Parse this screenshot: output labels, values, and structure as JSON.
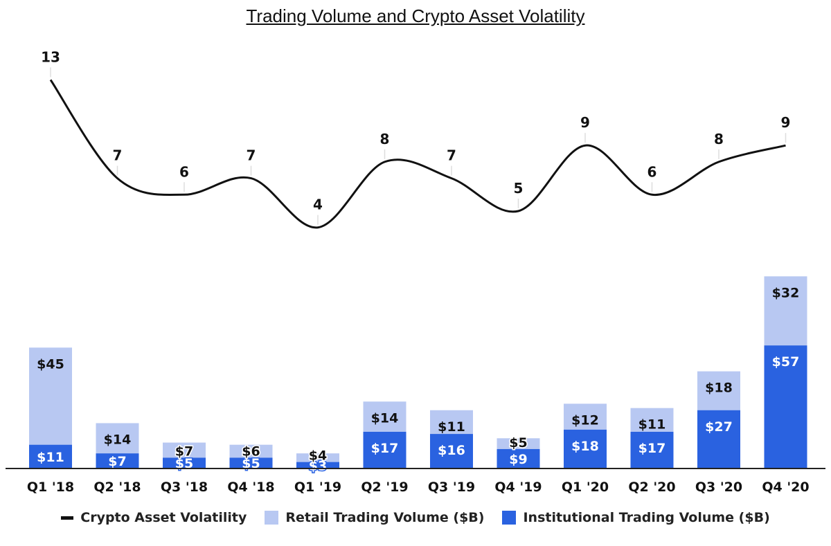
{
  "chart_data": {
    "type": "bar",
    "title": "Trading Volume and Crypto Asset Volatility",
    "categories": [
      "Q1 '18",
      "Q2 '18",
      "Q3 '18",
      "Q4 '18",
      "Q1 '19",
      "Q2 '19",
      "Q3 '19",
      "Q4 '19",
      "Q1 '20",
      "Q2 '20",
      "Q3 '20",
      "Q4 '20"
    ],
    "stacked": true,
    "series": [
      {
        "name": "Institutional Trading Volume ($B)",
        "kind": "bar",
        "color": "#2a62e0",
        "values": [
          11,
          7,
          5,
          5,
          3,
          17,
          16,
          9,
          18,
          17,
          27,
          57
        ],
        "labels": [
          "$11",
          "$7",
          "$5",
          "$5",
          "$3",
          "$17",
          "$16",
          "$9",
          "$18",
          "$17",
          "$27",
          "$57"
        ]
      },
      {
        "name": "Retail Trading Volume ($B)",
        "kind": "bar",
        "color": "#b8c8f2",
        "values": [
          45,
          14,
          7,
          6,
          4,
          14,
          11,
          5,
          12,
          11,
          18,
          32
        ],
        "labels": [
          "$45",
          "$14",
          "$7",
          "$6",
          "$4",
          "$14",
          "$11",
          "$5",
          "$12",
          "$11",
          "$18",
          "$32"
        ]
      },
      {
        "name": "Crypto Asset Volatility",
        "kind": "line",
        "color": "#111111",
        "values": [
          13,
          7,
          6,
          7,
          4,
          8,
          7,
          5,
          9,
          6,
          8,
          9
        ],
        "labels": [
          "13",
          "7",
          "6",
          "7",
          "4",
          "8",
          "7",
          "5",
          "9",
          "6",
          "8",
          "9"
        ]
      }
    ],
    "legend": [
      {
        "name": "Crypto Asset Volatility",
        "kind": "line",
        "color": "#111111"
      },
      {
        "name": "Retail Trading Volume ($B)",
        "kind": "box",
        "color": "#b8c8f2"
      },
      {
        "name": "Institutional Trading Volume ($B)",
        "kind": "box",
        "color": "#2a62e0"
      }
    ],
    "legend_position": "bottom",
    "grid": false,
    "xlabel": "",
    "ylabel": ""
  }
}
